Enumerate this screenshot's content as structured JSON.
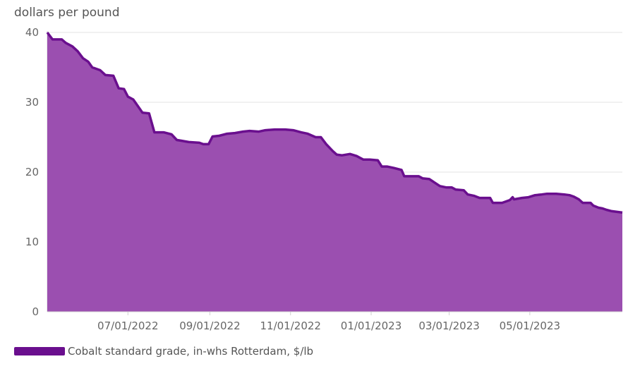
{
  "chart_data": {
    "type": "area",
    "title": "",
    "ylabel": "dollars per pound",
    "xlabel": "",
    "ylim": [
      0,
      40
    ],
    "yticks": [
      0,
      10,
      20,
      30,
      40
    ],
    "xticks": [
      "07/01/2022",
      "09/01/2022",
      "11/01/2022",
      "01/01/2023",
      "03/01/2023",
      "05/01/2023"
    ],
    "xrange": [
      "05/01/2022",
      "05/31/2023"
    ],
    "grid": true,
    "legend_position": "bottom-left",
    "colors": {
      "line": "#6a0f8e",
      "fill": "#9b4fb0"
    },
    "series": [
      {
        "name": "Cobalt standard grade, in-whs Rotterdam, $/lb",
        "points": [
          [
            "05/01/2022",
            40.0
          ],
          [
            "05/05/2022",
            39.0
          ],
          [
            "05/12/2022",
            39.0
          ],
          [
            "05/15/2022",
            38.5
          ],
          [
            "05/20/2022",
            38.0
          ],
          [
            "05/24/2022",
            37.3
          ],
          [
            "05/28/2022",
            36.3
          ],
          [
            "06/01/2022",
            35.8
          ],
          [
            "06/04/2022",
            35.0
          ],
          [
            "06/10/2022",
            34.6
          ],
          [
            "06/14/2022",
            33.9
          ],
          [
            "06/20/2022",
            33.8
          ],
          [
            "06/24/2022",
            32.0
          ],
          [
            "06/28/2022",
            31.9
          ],
          [
            "07/01/2022",
            30.8
          ],
          [
            "07/05/2022",
            30.4
          ],
          [
            "07/08/2022",
            29.6
          ],
          [
            "07/12/2022",
            28.5
          ],
          [
            "07/17/2022",
            28.4
          ],
          [
            "07/21/2022",
            25.7
          ],
          [
            "07/28/2022",
            25.7
          ],
          [
            "08/03/2022",
            25.4
          ],
          [
            "08/07/2022",
            24.6
          ],
          [
            "08/10/2022",
            24.5
          ],
          [
            "08/16/2022",
            24.3
          ],
          [
            "08/24/2022",
            24.2
          ],
          [
            "08/27/2022",
            24.0
          ],
          [
            "08/31/2022",
            24.0
          ],
          [
            "09/03/2022",
            25.1
          ],
          [
            "09/08/2022",
            25.2
          ],
          [
            "09/14/2022",
            25.5
          ],
          [
            "09/20/2022",
            25.6
          ],
          [
            "09/26/2022",
            25.8
          ],
          [
            "10/01/2022",
            25.9
          ],
          [
            "10/08/2022",
            25.8
          ],
          [
            "10/13/2022",
            26.0
          ],
          [
            "10/20/2022",
            26.1
          ],
          [
            "10/28/2022",
            26.1
          ],
          [
            "11/03/2022",
            26.0
          ],
          [
            "11/09/2022",
            25.7
          ],
          [
            "11/14/2022",
            25.5
          ],
          [
            "11/20/2022",
            25.0
          ],
          [
            "11/24/2022",
            25.0
          ],
          [
            "11/28/2022",
            24.0
          ],
          [
            "12/03/2022",
            23.0
          ],
          [
            "12/06/2022",
            22.5
          ],
          [
            "12/10/2022",
            22.4
          ],
          [
            "12/16/2022",
            22.6
          ],
          [
            "12/21/2022",
            22.3
          ],
          [
            "12/26/2022",
            21.8
          ],
          [
            "12/31/2022",
            21.8
          ],
          [
            "01/06/2023",
            21.7
          ],
          [
            "01/09/2023",
            20.8
          ],
          [
            "01/13/2023",
            20.8
          ],
          [
            "01/18/2023",
            20.6
          ],
          [
            "01/24/2023",
            20.3
          ],
          [
            "01/26/2023",
            19.4
          ],
          [
            "01/30/2023",
            19.4
          ],
          [
            "02/06/2023",
            19.4
          ],
          [
            "02/09/2023",
            19.1
          ],
          [
            "02/14/2023",
            19.0
          ],
          [
            "02/18/2023",
            18.5
          ],
          [
            "02/22/2023",
            18.0
          ],
          [
            "02/27/2023",
            17.8
          ],
          [
            "03/03/2023",
            17.8
          ],
          [
            "03/06/2023",
            17.5
          ],
          [
            "03/12/2023",
            17.4
          ],
          [
            "03/15/2023",
            16.8
          ],
          [
            "03/20/2023",
            16.6
          ],
          [
            "03/24/2023",
            16.3
          ],
          [
            "04/01/2023",
            16.3
          ],
          [
            "04/03/2023",
            15.6
          ],
          [
            "04/10/2023",
            15.6
          ],
          [
            "04/16/2023",
            16.0
          ],
          [
            "04/18/2023",
            16.4
          ],
          [
            "04/19/2023",
            16.1
          ],
          [
            "04/25/2023",
            16.3
          ],
          [
            "04/30/2023",
            16.4
          ],
          [
            "05/05/2023",
            16.7
          ],
          [
            "05/10/2023",
            16.8
          ],
          [
            "05/14/2023",
            16.9
          ],
          [
            "05/21/2023",
            16.9
          ],
          [
            "05/27/2023",
            16.8
          ],
          [
            "05/31/2023",
            16.7
          ],
          [
            "06/03/2023",
            16.5
          ],
          [
            "06/07/2023",
            16.1
          ],
          [
            "06/10/2023",
            15.6
          ],
          [
            "06/16/2023",
            15.6
          ],
          [
            "06/18/2023",
            15.2
          ],
          [
            "06/22/2023",
            14.9
          ],
          [
            "06/25/2023",
            14.8
          ],
          [
            "06/28/2023",
            14.6
          ],
          [
            "07/02/2023",
            14.4
          ],
          [
            "07/06/2023",
            14.3
          ],
          [
            "07/10/2023",
            14.2
          ]
        ]
      }
    ]
  }
}
